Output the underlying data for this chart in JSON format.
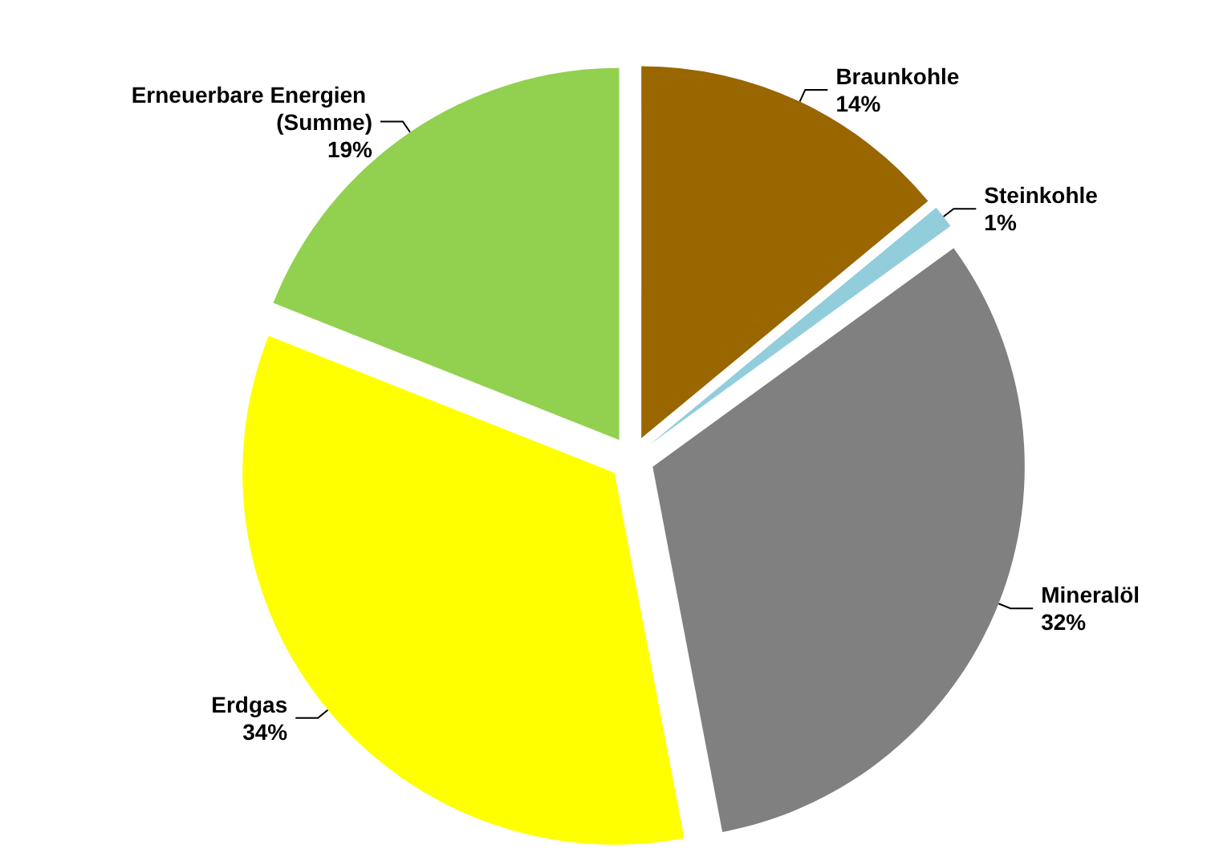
{
  "chart_data": {
    "type": "pie",
    "categories": [
      "Braunkohle",
      "Steinkohle",
      "Mineralöl",
      "Erdgas",
      "Erneuerbare Energien (Summe)"
    ],
    "values": [
      14,
      1,
      32,
      34,
      19
    ],
    "colors": [
      "#996600",
      "#92cddc",
      "#808080",
      "#ffff00",
      "#92d050"
    ],
    "value_labels": [
      "14%",
      "1%",
      "32%",
      "34%",
      "19%"
    ],
    "legend": false
  }
}
